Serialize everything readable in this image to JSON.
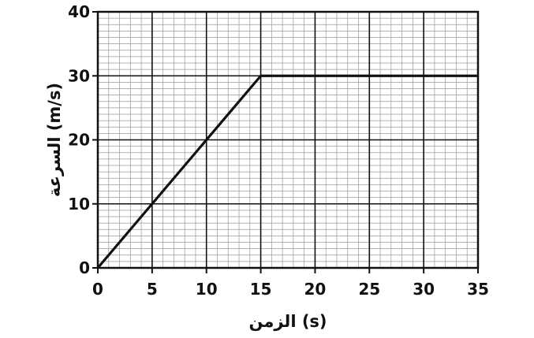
{
  "chart_data": {
    "type": "line",
    "xlabel": "الزمن (s)",
    "ylabel": "السرعة (m/s)",
    "xlim": [
      0,
      35
    ],
    "ylim": [
      0,
      40
    ],
    "x_ticks": [
      0,
      5,
      10,
      15,
      20,
      25,
      30,
      35
    ],
    "y_ticks": [
      0,
      10,
      20,
      30,
      40
    ],
    "grid": true,
    "series": [
      {
        "x": [
          0,
          15,
          35
        ],
        "y": [
          0,
          30,
          30
        ]
      }
    ]
  }
}
